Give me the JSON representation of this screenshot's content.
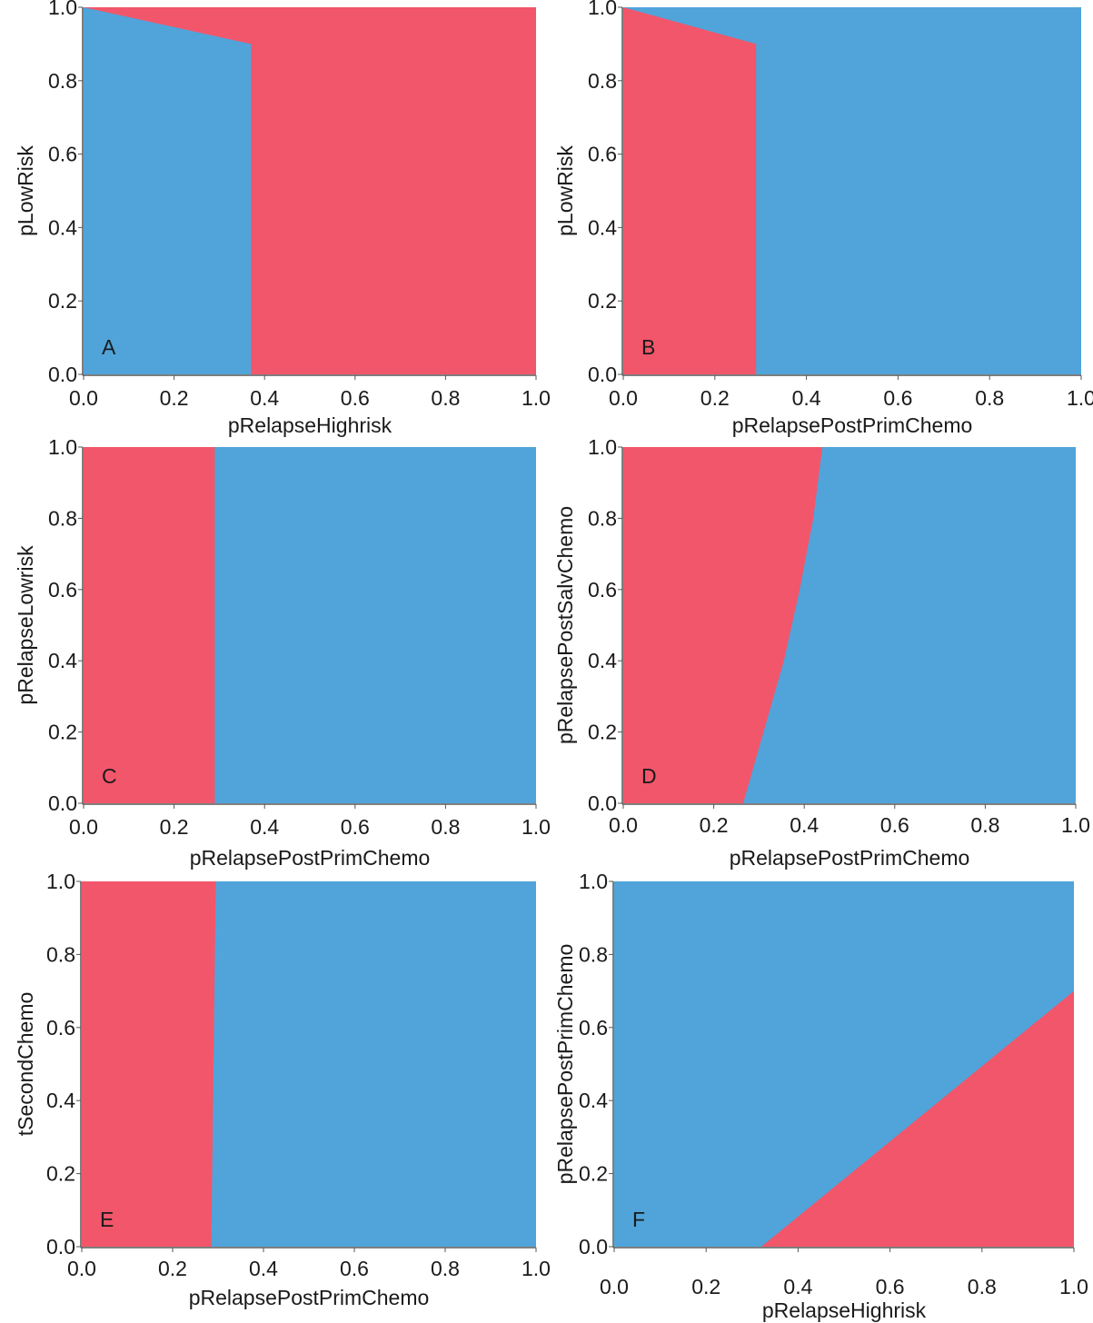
{
  "colors": {
    "red": "#f2566a",
    "blue": "#50a4da",
    "axis": "#555555"
  },
  "chart_data": [
    {
      "type": "area",
      "panel_label": "A",
      "xlabel": "pRelapseHighrisk",
      "ylabel": "pLowRisk",
      "xlim": [
        0,
        1
      ],
      "ylim": [
        0,
        1
      ],
      "xticks": [
        "0.0",
        "0.2",
        "0.4",
        "0.6",
        "0.8",
        "1.0"
      ],
      "yticks": [
        "0.0",
        "0.2",
        "0.4",
        "0.6",
        "0.8",
        "1.0"
      ],
      "background": "red",
      "regions": [
        {
          "color": "blue",
          "points": [
            [
              0,
              0
            ],
            [
              0,
              1
            ],
            [
              0.37,
              0.9
            ],
            [
              0.37,
              0
            ]
          ]
        }
      ]
    },
    {
      "type": "area",
      "panel_label": "B",
      "xlabel": "pRelapsePostPrimChemo",
      "ylabel": "pLowRisk",
      "xlim": [
        0,
        1
      ],
      "ylim": [
        0,
        1
      ],
      "xticks": [
        "0.0",
        "0.2",
        "0.4",
        "0.6",
        "0.8",
        "1.0"
      ],
      "yticks": [
        "0.0",
        "0.2",
        "0.4",
        "0.6",
        "0.8",
        "1.0"
      ],
      "background": "blue",
      "regions": [
        {
          "color": "red",
          "points": [
            [
              0,
              0
            ],
            [
              0,
              1
            ],
            [
              0.29,
              0.9
            ],
            [
              0.29,
              0
            ]
          ]
        }
      ]
    },
    {
      "type": "area",
      "panel_label": "C",
      "xlabel": "pRelapsePostPrimChemo",
      "ylabel": "pRelapseLowrisk",
      "xlim": [
        0,
        1
      ],
      "ylim": [
        0,
        1
      ],
      "xticks": [
        "0.0",
        "0.2",
        "0.4",
        "0.6",
        "0.8",
        "1.0"
      ],
      "yticks": [
        "0.0",
        "0.2",
        "0.4",
        "0.6",
        "0.8",
        "1.0"
      ],
      "background": "blue",
      "regions": [
        {
          "color": "red",
          "points": [
            [
              0,
              0
            ],
            [
              0,
              1
            ],
            [
              0.29,
              1
            ],
            [
              0.29,
              0
            ]
          ]
        }
      ]
    },
    {
      "type": "area",
      "panel_label": "D",
      "xlabel": "pRelapsePostPrimChemo",
      "ylabel": "pRelapsePostSalvChemo",
      "xlim": [
        0,
        1
      ],
      "ylim": [
        0,
        1
      ],
      "xticks": [
        "0.0",
        "0.2",
        "0.4",
        "0.6",
        "0.8",
        "1.0"
      ],
      "yticks": [
        "0.0",
        "0.2",
        "0.4",
        "0.6",
        "0.8",
        "1.0"
      ],
      "background": "blue",
      "regions": [
        {
          "color": "red",
          "points": [
            [
              0,
              0
            ],
            [
              0,
              1
            ],
            [
              0.44,
              1
            ],
            [
              0.42,
              0.8
            ],
            [
              0.39,
              0.6
            ],
            [
              0.355,
              0.4
            ],
            [
              0.31,
              0.2
            ],
            [
              0.265,
              0
            ]
          ]
        }
      ]
    },
    {
      "type": "area",
      "panel_label": "E",
      "xlabel": "pRelapsePostPrimChemo",
      "ylabel": "tSecondChemo",
      "xlim": [
        0,
        1
      ],
      "ylim": [
        0,
        1
      ],
      "xticks": [
        "0.0",
        "0.2",
        "0.4",
        "0.6",
        "0.8",
        "1.0"
      ],
      "yticks": [
        "0.0",
        "0.2",
        "0.4",
        "0.6",
        "0.8",
        "1.0"
      ],
      "background": "blue",
      "regions": [
        {
          "color": "red",
          "points": [
            [
              0,
              0
            ],
            [
              0,
              1
            ],
            [
              0.295,
              1
            ],
            [
              0.285,
              0
            ]
          ]
        }
      ]
    },
    {
      "type": "area",
      "panel_label": "F",
      "xlabel": "pRelapseHighrisk",
      "ylabel": "pRelapsePostPrimChemo",
      "xlim": [
        0,
        1
      ],
      "ylim": [
        0,
        1
      ],
      "xticks": [
        "0.0",
        "0.2",
        "0.4",
        "0.6",
        "0.8",
        "1.0"
      ],
      "yticks": [
        "0.0",
        "0.2",
        "0.4",
        "0.6",
        "0.8",
        "1.0"
      ],
      "background": "blue",
      "regions": [
        {
          "color": "red",
          "points": [
            [
              0.32,
              0
            ],
            [
              1,
              0.7
            ],
            [
              1,
              0
            ]
          ]
        }
      ]
    }
  ]
}
